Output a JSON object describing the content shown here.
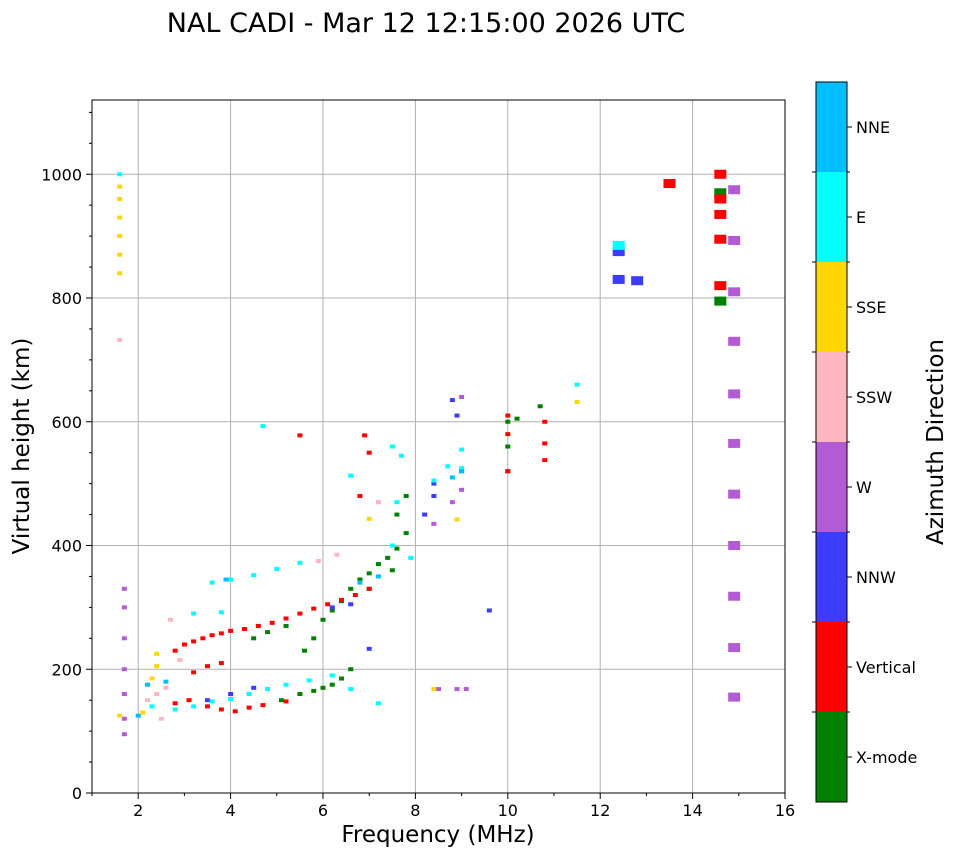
{
  "chart_data": {
    "type": "scatter",
    "title": "NAL CADI - Mar 12 12:15:00 2026 UTC",
    "xlabel": "Frequency (MHz)",
    "ylabel": "Virtual height (km)",
    "xlim": [
      1,
      16
    ],
    "ylim": [
      0,
      1120
    ],
    "xticks": [
      2,
      4,
      6,
      8,
      10,
      12,
      14,
      16
    ],
    "yticks": [
      0,
      200,
      400,
      600,
      800,
      1000
    ],
    "grid": true,
    "colorbar": {
      "label": "Azimuth Direction",
      "position": "right",
      "categories": [
        {
          "name": "X-mode",
          "color": "#008000"
        },
        {
          "name": "Vertical",
          "color": "#ff0000"
        },
        {
          "name": "NNW",
          "color": "#3c3cff"
        },
        {
          "name": "W",
          "color": "#b35ad5"
        },
        {
          "name": "SSW",
          "color": "#ffb6c1"
        },
        {
          "name": "SSE",
          "color": "#ffd700"
        },
        {
          "name": "E",
          "color": "#00ffff"
        },
        {
          "name": "NNE",
          "color": "#00bfff"
        }
      ]
    },
    "series": [
      {
        "name": "X-mode",
        "points": [
          [
            5.1,
            150
          ],
          [
            5.5,
            160
          ],
          [
            5.8,
            165
          ],
          [
            6.0,
            170
          ],
          [
            6.2,
            175
          ],
          [
            6.4,
            185
          ],
          [
            6.6,
            200
          ],
          [
            5.6,
            230
          ],
          [
            5.8,
            250
          ],
          [
            6.0,
            280
          ],
          [
            6.2,
            295
          ],
          [
            6.4,
            310
          ],
          [
            6.6,
            330
          ],
          [
            6.8,
            345
          ],
          [
            7.0,
            355
          ],
          [
            7.2,
            370
          ],
          [
            7.4,
            380
          ],
          [
            7.6,
            395
          ],
          [
            7.8,
            420
          ],
          [
            7.6,
            450
          ],
          [
            7.8,
            480
          ],
          [
            10.0,
            520
          ],
          [
            10.0,
            560
          ],
          [
            10.0,
            600
          ],
          [
            10.2,
            605
          ],
          [
            10.7,
            625
          ],
          [
            14.6,
            970
          ],
          [
            14.6,
            795
          ],
          [
            4.5,
            250
          ],
          [
            4.8,
            260
          ],
          [
            5.2,
            270
          ],
          [
            7.0,
            330
          ],
          [
            7.5,
            360
          ]
        ]
      },
      {
        "name": "Vertical",
        "points": [
          [
            2.8,
            230
          ],
          [
            3.0,
            240
          ],
          [
            3.2,
            245
          ],
          [
            3.4,
            250
          ],
          [
            3.6,
            255
          ],
          [
            3.8,
            258
          ],
          [
            4.0,
            262
          ],
          [
            4.3,
            265
          ],
          [
            4.6,
            270
          ],
          [
            4.9,
            275
          ],
          [
            5.2,
            282
          ],
          [
            5.5,
            290
          ],
          [
            5.8,
            298
          ],
          [
            6.1,
            305
          ],
          [
            6.4,
            312
          ],
          [
            6.7,
            320
          ],
          [
            7.0,
            330
          ],
          [
            3.2,
            195
          ],
          [
            3.5,
            205
          ],
          [
            3.8,
            210
          ],
          [
            2.8,
            145
          ],
          [
            3.1,
            150
          ],
          [
            3.5,
            140
          ],
          [
            3.8,
            135
          ],
          [
            4.1,
            132
          ],
          [
            4.4,
            138
          ],
          [
            4.7,
            142
          ],
          [
            5.2,
            148
          ],
          [
            6.9,
            578
          ],
          [
            7.0,
            550
          ],
          [
            5.5,
            578
          ],
          [
            6.8,
            480
          ],
          [
            9.0,
            520
          ],
          [
            10.0,
            610
          ],
          [
            10.0,
            580
          ],
          [
            10.0,
            520
          ],
          [
            10.8,
            600
          ],
          [
            10.8,
            565
          ],
          [
            10.8,
            538
          ],
          [
            13.5,
            985
          ],
          [
            14.6,
            1000
          ],
          [
            14.6,
            960
          ],
          [
            14.6,
            935
          ],
          [
            14.6,
            895
          ],
          [
            14.6,
            820
          ]
        ]
      },
      {
        "name": "NNW",
        "points": [
          [
            3.5,
            150
          ],
          [
            4.0,
            160
          ],
          [
            4.5,
            170
          ],
          [
            8.2,
            450
          ],
          [
            8.4,
            500
          ],
          [
            8.4,
            480
          ],
          [
            8.8,
            635
          ],
          [
            8.9,
            610
          ],
          [
            9.6,
            295
          ],
          [
            12.4,
            830
          ],
          [
            12.4,
            875
          ],
          [
            12.8,
            828
          ],
          [
            7.0,
            233
          ],
          [
            6.2,
            300
          ],
          [
            6.6,
            305
          ]
        ]
      },
      {
        "name": "W",
        "points": [
          [
            1.7,
            330
          ],
          [
            1.7,
            300
          ],
          [
            1.7,
            250
          ],
          [
            1.7,
            200
          ],
          [
            1.7,
            160
          ],
          [
            1.7,
            120
          ],
          [
            1.7,
            95
          ],
          [
            8.4,
            435
          ],
          [
            8.8,
            470
          ],
          [
            9.0,
            490
          ],
          [
            9.0,
            640
          ],
          [
            8.9,
            168
          ],
          [
            9.1,
            168
          ],
          [
            8.5,
            168
          ],
          [
            14.9,
            975
          ],
          [
            14.9,
            893
          ],
          [
            14.9,
            810
          ],
          [
            14.9,
            730
          ],
          [
            14.9,
            645
          ],
          [
            14.9,
            565
          ],
          [
            14.9,
            483
          ],
          [
            14.9,
            400
          ],
          [
            14.9,
            318
          ],
          [
            14.9,
            235
          ],
          [
            14.9,
            155
          ]
        ]
      },
      {
        "name": "SSW",
        "points": [
          [
            1.6,
            732
          ],
          [
            2.2,
            150
          ],
          [
            2.4,
            160
          ],
          [
            2.6,
            170
          ],
          [
            2.7,
            280
          ],
          [
            6.3,
            385
          ],
          [
            5.9,
            375
          ],
          [
            7.2,
            470
          ],
          [
            2.9,
            215
          ],
          [
            2.5,
            120
          ]
        ]
      },
      {
        "name": "SSE",
        "points": [
          [
            1.6,
            840
          ],
          [
            1.6,
            870
          ],
          [
            1.6,
            900
          ],
          [
            1.6,
            930
          ],
          [
            1.6,
            960
          ],
          [
            1.6,
            980
          ],
          [
            2.3,
            185
          ],
          [
            2.4,
            205
          ],
          [
            2.4,
            225
          ],
          [
            8.4,
            168
          ],
          [
            8.9,
            442
          ],
          [
            7.0,
            443
          ],
          [
            11.5,
            632
          ],
          [
            1.6,
            125
          ],
          [
            2.1,
            130
          ]
        ]
      },
      {
        "name": "E",
        "points": [
          [
            1.6,
            1000
          ],
          [
            3.6,
            340
          ],
          [
            4.0,
            345
          ],
          [
            4.5,
            352
          ],
          [
            5.0,
            362
          ],
          [
            5.5,
            372
          ],
          [
            3.2,
            290
          ],
          [
            3.8,
            292
          ],
          [
            2.8,
            135
          ],
          [
            3.2,
            140
          ],
          [
            3.6,
            148
          ],
          [
            4.0,
            152
          ],
          [
            4.4,
            160
          ],
          [
            4.8,
            168
          ],
          [
            5.2,
            175
          ],
          [
            5.7,
            182
          ],
          [
            6.2,
            190
          ],
          [
            6.6,
            168
          ],
          [
            7.2,
            145
          ],
          [
            4.7,
            593
          ],
          [
            6.6,
            513
          ],
          [
            7.5,
            560
          ],
          [
            7.7,
            545
          ],
          [
            7.6,
            470
          ],
          [
            8.4,
            505
          ],
          [
            9.0,
            555
          ],
          [
            9.0,
            525
          ],
          [
            8.7,
            528
          ],
          [
            11.5,
            660
          ],
          [
            12.4,
            885
          ],
          [
            7.5,
            400
          ],
          [
            7.9,
            380
          ],
          [
            2.3,
            140
          ]
        ]
      },
      {
        "name": "NNE",
        "points": [
          [
            2.2,
            175
          ],
          [
            2.6,
            180
          ],
          [
            6.8,
            340
          ],
          [
            7.2,
            350
          ],
          [
            9.0,
            520
          ],
          [
            8.8,
            510
          ],
          [
            3.9,
            345
          ],
          [
            2.0,
            125
          ]
        ]
      }
    ]
  }
}
